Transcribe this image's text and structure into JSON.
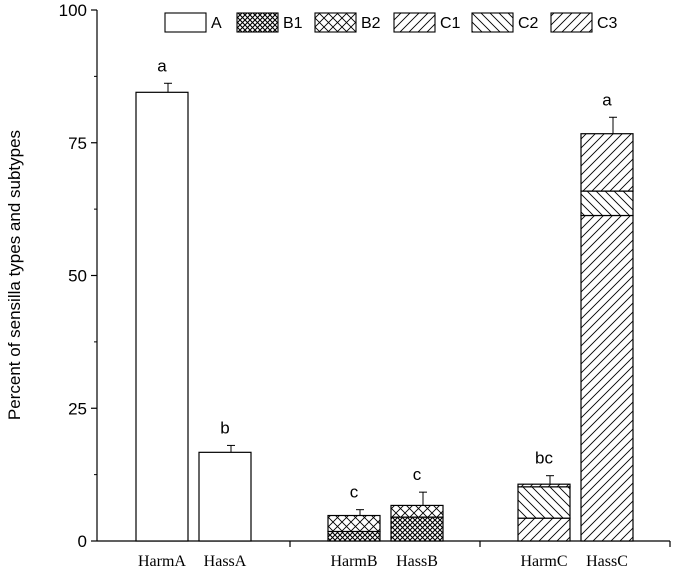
{
  "chart_data": {
    "type": "bar",
    "stacked": true,
    "ylabel": "Percent of sensilla types and subtypes",
    "xlabel": "",
    "ylim": [
      0,
      100
    ],
    "yticks": [
      0,
      25,
      50,
      75,
      100
    ],
    "categories": [
      "HarmA",
      "HassA",
      "HarmB",
      "HassB",
      "HarmC",
      "HassC"
    ],
    "legend": {
      "placement": "top",
      "entries": [
        "A",
        "B1",
        "B2",
        "C1",
        "C2",
        "C3"
      ]
    },
    "series": [
      {
        "name": "A",
        "pattern": "blank",
        "values": [
          84.5,
          16.7,
          0,
          0,
          0,
          0
        ]
      },
      {
        "name": "B1",
        "pattern": "crosshatch",
        "values": [
          0,
          0,
          1.8,
          4.5,
          0,
          0
        ]
      },
      {
        "name": "B2",
        "pattern": "diagcross",
        "values": [
          0,
          0,
          3.0,
          2.2,
          0,
          0
        ]
      },
      {
        "name": "C1",
        "pattern": "forward",
        "values": [
          0,
          0,
          0,
          0,
          4.3,
          61.3
        ]
      },
      {
        "name": "C2",
        "pattern": "backward",
        "values": [
          0,
          0,
          0,
          0,
          5.9,
          4.6
        ]
      },
      {
        "name": "C3",
        "pattern": "forward",
        "values": [
          0,
          0,
          0,
          0,
          0.5,
          10.8
        ]
      }
    ],
    "error_tops": [
      86.2,
      18.0,
      5.9,
      9.2,
      12.3,
      79.8
    ],
    "significance": [
      "a",
      "b",
      "c",
      "c",
      "bc",
      "a"
    ]
  }
}
